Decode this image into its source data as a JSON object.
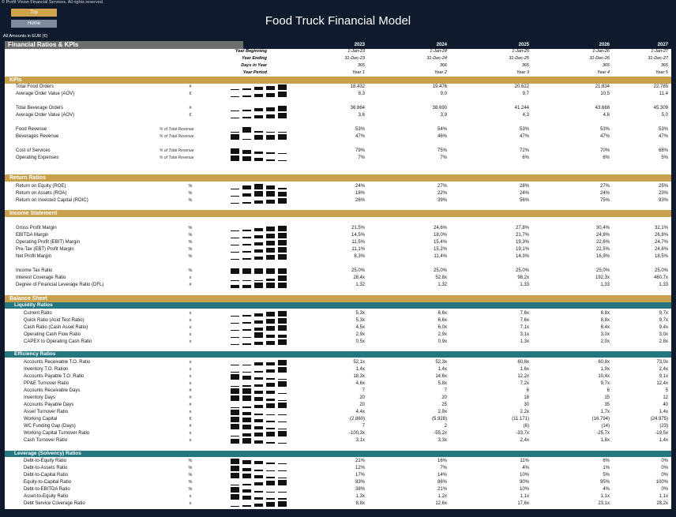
{
  "header": {
    "copyright": "© Profit Vision Financial Services. All rights reserved.",
    "nav_top": "Top",
    "nav_home": "Home",
    "title": "Food Truck Financial Model",
    "amounts_note": "All Amounts in EUR (€)"
  },
  "table_header": {
    "title": "Financial Ratios & KPIs",
    "years": [
      "2023",
      "2024",
      "2025",
      "2026",
      "2027"
    ]
  },
  "meta_rows": [
    {
      "label": "Year Beginning",
      "values": [
        "1-Jan-23",
        "1-Jan-24",
        "1-Jan-25",
        "1-Jan-26",
        "1-Jan-27"
      ]
    },
    {
      "label": "Year Ending",
      "values": [
        "31-Dec-23",
        "31-Dec-24",
        "31-Dec-25",
        "31-Dec-26",
        "31-Dec-27"
      ]
    },
    {
      "label": "Days in Year",
      "values": [
        "365",
        "366",
        "365",
        "365",
        "365"
      ]
    },
    {
      "label": "Year Period",
      "values": [
        "Year 1",
        "Year 2",
        "Year 3",
        "Year 4",
        "Year 5"
      ]
    }
  ],
  "sections": {
    "kpis": "KPIs",
    "return_on_investment": "Return Ratios",
    "income_statement": "Income Statement",
    "balance_sheet": "Balance Sheet",
    "liquidity": "Liquidity Ratios",
    "efficiency": "Efficiency Ratios",
    "leverage": "Leverage (Solvency) Ratios"
  },
  "rows": {
    "kpis": [
      {
        "label": "Total Food Orders",
        "unit": "#",
        "note": "",
        "values": [
          "18.432",
          "19.476",
          "20.622",
          "21.834",
          "22.785"
        ],
        "spark": [
          0.15,
          0.3,
          0.5,
          0.75,
          1.0
        ]
      },
      {
        "label": "Average Order Value (AOV)",
        "unit": "€",
        "note": "",
        "values": [
          "8,3",
          "9,0",
          "9,7",
          "10,5",
          "11,4"
        ],
        "spark": [
          0.15,
          0.3,
          0.5,
          0.75,
          1.0
        ]
      },
      {
        "label": "Total Beverage Orders",
        "unit": "#",
        "note": "",
        "values": [
          "36.864",
          "38.690",
          "41.244",
          "43.668",
          "45.309"
        ],
        "spark": [
          0.15,
          0.3,
          0.5,
          0.75,
          1.0
        ]
      },
      {
        "label": "Average Order Value (AOV)",
        "unit": "€",
        "note": "",
        "values": [
          "3,6",
          "3,9",
          "4,3",
          "4,6",
          "5,0"
        ],
        "spark": [
          0.15,
          0.3,
          0.5,
          0.75,
          1.0
        ]
      },
      {
        "label": "Food Revenue",
        "unit": "",
        "note": "% of Total Revenue",
        "values": [
          "53%",
          "54%",
          "53%",
          "53%",
          "53%"
        ],
        "spark": [
          0.1,
          1.0,
          0.3,
          0.2,
          0.1
        ]
      },
      {
        "label": "Beverages Revenue",
        "unit": "",
        "note": "% of Total Revenue",
        "values": [
          "47%",
          "46%",
          "47%",
          "47%",
          "47%"
        ],
        "spark": [
          1.0,
          0.1,
          0.8,
          0.9,
          1.0
        ]
      },
      {
        "label": "Cost of Services",
        "unit": "",
        "note": "% of Total Revenue",
        "values": [
          "79%",
          "75%",
          "72%",
          "70%",
          "68%"
        ],
        "spark": [
          1.0,
          0.75,
          0.45,
          0.25,
          0.1
        ]
      },
      {
        "label": "Operating Expenses",
        "unit": "",
        "note": "% of Total Revenue",
        "values": [
          "7%",
          "7%",
          "6%",
          "6%",
          "5%"
        ],
        "spark": [
          1.0,
          0.8,
          0.5,
          0.25,
          0.1
        ]
      }
    ],
    "returns": [
      {
        "label": "Return on Equity (ROE)",
        "unit": "%",
        "values": [
          "24%",
          "27%",
          "28%",
          "27%",
          "25%"
        ],
        "spark": [
          0.1,
          0.7,
          1.0,
          0.7,
          0.3
        ]
      },
      {
        "label": "Return on Assets (ROA)",
        "unit": "%",
        "values": [
          "18%",
          "22%",
          "24%",
          "24%",
          "23%"
        ],
        "spark": [
          0.1,
          0.6,
          1.0,
          1.0,
          0.8
        ]
      },
      {
        "label": "Return on Invested Capital (ROIC)",
        "unit": "%",
        "values": [
          "26%",
          "39%",
          "56%",
          "75%",
          "93%"
        ],
        "spark": [
          0.1,
          0.3,
          0.5,
          0.75,
          1.0
        ]
      }
    ],
    "income": [
      {
        "label": "Gross Profit Margin",
        "unit": "%",
        "values": [
          "21,5%",
          "24,6%",
          "27,8%",
          "30,4%",
          "32,1%"
        ],
        "spark": [
          0.1,
          0.35,
          0.6,
          0.85,
          1.0
        ]
      },
      {
        "label": "EBITDA Margin",
        "unit": "%",
        "values": [
          "14,5%",
          "18,0%",
          "21,7%",
          "24,8%",
          "26,8%"
        ],
        "spark": [
          0.1,
          0.35,
          0.6,
          0.85,
          1.0
        ]
      },
      {
        "label": "Operating Profit (EBIT) Margin",
        "unit": "%",
        "values": [
          "11,5%",
          "15,4%",
          "19,3%",
          "22,6%",
          "24,7%"
        ],
        "spark": [
          0.1,
          0.35,
          0.6,
          0.85,
          1.0
        ]
      },
      {
        "label": "Pre-Tax (EBT) Profit Margin",
        "unit": "%",
        "values": [
          "11,1%",
          "15,2%",
          "19,1%",
          "22,5%",
          "24,6%"
        ],
        "spark": [
          0.1,
          0.35,
          0.6,
          0.85,
          1.0
        ]
      },
      {
        "label": "Net Profit Margin",
        "unit": "%",
        "values": [
          "8,3%",
          "11,4%",
          "14,3%",
          "16,9%",
          "18,5%"
        ],
        "spark": [
          0.1,
          0.35,
          0.6,
          0.85,
          1.0
        ]
      },
      {
        "label": "Income Tax Ratio",
        "unit": "%",
        "values": [
          "25,0%",
          "25,0%",
          "25,0%",
          "25,0%",
          "25,0%"
        ],
        "spark": [
          1.0,
          1.0,
          1.0,
          1.0,
          1.0
        ]
      },
      {
        "label": "Interest Coverage Ratio",
        "unit": "x",
        "values": [
          "28,4x",
          "52,8x",
          "98,2x",
          "192,3x",
          "460,7x"
        ],
        "spark": [
          0.05,
          0.1,
          0.2,
          0.45,
          1.0
        ]
      },
      {
        "label": "Degree of Financial Leverage Ratio (DFL)",
        "unit": "#",
        "values": [
          "1,32",
          "1,32",
          "1,33",
          "1,33",
          "1,33"
        ],
        "spark": [
          0.5,
          0.5,
          1.0,
          1.0,
          1.0
        ]
      }
    ],
    "liquidity": [
      {
        "label": "Current Ratio",
        "unit": "x",
        "values": [
          "5,3x",
          "6,6x",
          "7,6x",
          "8,8x",
          "9,7x"
        ],
        "spark": [
          0.1,
          0.35,
          0.6,
          0.85,
          1.0
        ]
      },
      {
        "label": "Quick Ratio (Acid Test Ratio)",
        "unit": "x",
        "values": [
          "5,3x",
          "6,6x",
          "7,6x",
          "8,8x",
          "9,7x"
        ],
        "spark": [
          0.1,
          0.35,
          0.6,
          0.85,
          1.0
        ]
      },
      {
        "label": "Cash Ratio (Cash Asset Ratio)",
        "unit": "x",
        "values": [
          "4,5x",
          "6,0x",
          "7,1x",
          "8,4x",
          "9,4x"
        ],
        "spark": [
          0.1,
          0.35,
          0.6,
          0.85,
          1.0
        ]
      },
      {
        "label": "Operating Cash Flow Ratio",
        "unit": "x",
        "values": [
          "2,9x",
          "2,9x",
          "3,1x",
          "3,0x",
          "3,0x"
        ],
        "spark": [
          0.1,
          0.2,
          1.0,
          0.6,
          0.6
        ]
      },
      {
        "label": "CAPEX to Operating Cash Ratio",
        "unit": "x",
        "values": [
          "0,5x",
          "0,9x",
          "1,3x",
          "2,0x",
          "2,8x"
        ],
        "spark": [
          0.1,
          0.3,
          0.5,
          0.75,
          1.0
        ]
      }
    ],
    "efficiency": [
      {
        "label": "Accounts Receivable T.O. Ratio",
        "unit": "x",
        "values": [
          "52,1x",
          "52,3x",
          "60,8x",
          "60,8x",
          "73,0x"
        ],
        "spark": [
          0.1,
          0.15,
          0.5,
          0.5,
          1.0
        ]
      },
      {
        "label": "Inventory T.O. Ration",
        "unit": "x",
        "values": [
          "1,4x",
          "1,4x",
          "1,6x",
          "1,9x",
          "2,4x"
        ],
        "spark": [
          0.1,
          0.15,
          0.35,
          0.6,
          1.0
        ]
      },
      {
        "label": "Accounts Payable T.O. Ratio",
        "unit": "x",
        "values": [
          "18,3x",
          "14,6x",
          "12,2x",
          "10,4x",
          "9,1x"
        ],
        "spark": [
          1.0,
          0.7,
          0.45,
          0.25,
          0.1
        ]
      },
      {
        "label": "PP&E Turnover Ratio",
        "unit": "x",
        "values": [
          "4,6x",
          "5,8x",
          "7,2x",
          "9,7x",
          "12,4x"
        ],
        "spark": [
          0.1,
          0.25,
          0.45,
          0.7,
          1.0
        ]
      },
      {
        "label": "Accounts Receivable Days",
        "unit": "#",
        "values": [
          "7",
          "7",
          "6",
          "6",
          "5"
        ],
        "spark": [
          1.0,
          1.0,
          0.5,
          0.5,
          0.1
        ]
      },
      {
        "label": "Inventory Days",
        "unit": "#",
        "values": [
          "20",
          "20",
          "18",
          "15",
          "12"
        ],
        "spark": [
          1.0,
          1.0,
          0.75,
          0.4,
          0.1
        ]
      },
      {
        "label": "Accounts Payable Days",
        "unit": "#",
        "values": [
          "20",
          "25",
          "30",
          "35",
          "40"
        ],
        "spark": [
          0.1,
          0.35,
          0.6,
          0.85,
          1.0
        ]
      },
      {
        "label": "Asset Turnover Ratio",
        "unit": "x",
        "values": [
          "4,4x",
          "2,9x",
          "2,2x",
          "1,7x",
          "1,4x"
        ],
        "spark": [
          1.0,
          0.5,
          0.3,
          0.15,
          0.05
        ]
      },
      {
        "label": "Working Capital",
        "unit": "€",
        "values": [
          "(2.860)",
          "(5.928)",
          "(11.171)",
          "(16.794)",
          "(24.975)"
        ],
        "spark": [
          1.0,
          0.85,
          0.6,
          0.35,
          0.05
        ]
      },
      {
        "label": "WC Funding Gap (Days)",
        "unit": "#",
        "values": [
          "7",
          "2",
          "(6)",
          "(14)",
          "(23)"
        ],
        "spark": [
          1.0,
          0.8,
          0.5,
          0.3,
          0.05
        ]
      },
      {
        "label": "Working Capital Turnover Ratio",
        "unit": "x",
        "values": [
          "-100,3x",
          "-55,2x",
          "-33,7x",
          "-25,7x",
          "-19,5x"
        ],
        "spark": [
          0.05,
          0.5,
          0.75,
          0.85,
          1.0
        ]
      },
      {
        "label": "Cash Turnover Ratio",
        "unit": "x",
        "values": [
          "3,1x",
          "3,3x",
          "2,4x",
          "1,8x",
          "1,4x"
        ],
        "spark": [
          0.9,
          1.0,
          0.5,
          0.25,
          0.1
        ]
      }
    ],
    "leverage": [
      {
        "label": "Debt-to-Equity Ratio",
        "unit": "%",
        "values": [
          "21%",
          "16%",
          "11%",
          "6%",
          "0%"
        ],
        "spark": [
          1.0,
          0.75,
          0.5,
          0.25,
          0.05
        ]
      },
      {
        "label": "Debt-to-Assets Ratio",
        "unit": "%",
        "values": [
          "12%",
          "7%",
          "4%",
          "1%",
          "0%"
        ],
        "spark": [
          1.0,
          0.6,
          0.35,
          0.1,
          0.05
        ]
      },
      {
        "label": "Debt-to-Capital Ratio",
        "unit": "%",
        "values": [
          "17%",
          "14%",
          "10%",
          "5%",
          "0%"
        ],
        "spark": [
          1.0,
          0.8,
          0.55,
          0.3,
          0.05
        ]
      },
      {
        "label": "Equity-to-Capital Ratio",
        "unit": "%",
        "values": [
          "83%",
          "86%",
          "90%",
          "95%",
          "100%"
        ],
        "spark": [
          0.1,
          0.3,
          0.55,
          0.8,
          1.0
        ]
      },
      {
        "label": "Debt-to-EBITDA Ratio",
        "unit": "%",
        "values": [
          "38%",
          "21%",
          "10%",
          "4%",
          "0%"
        ],
        "spark": [
          1.0,
          0.55,
          0.3,
          0.1,
          0.05
        ]
      },
      {
        "label": "Asset-to-Equity Ratio",
        "unit": "x",
        "values": [
          "1,3x",
          "1,2x",
          "1,1x",
          "1,1x",
          "1,1x"
        ],
        "spark": [
          1.0,
          0.7,
          0.4,
          0.3,
          0.3
        ]
      },
      {
        "label": "Debt Service Coverage Ratio",
        "unit": "x",
        "values": [
          "8,8x",
          "12,6x",
          "17,6x",
          "23,1x",
          "28,2x"
        ],
        "spark": [
          0.1,
          0.35,
          0.6,
          0.85,
          1.0
        ]
      }
    ]
  }
}
